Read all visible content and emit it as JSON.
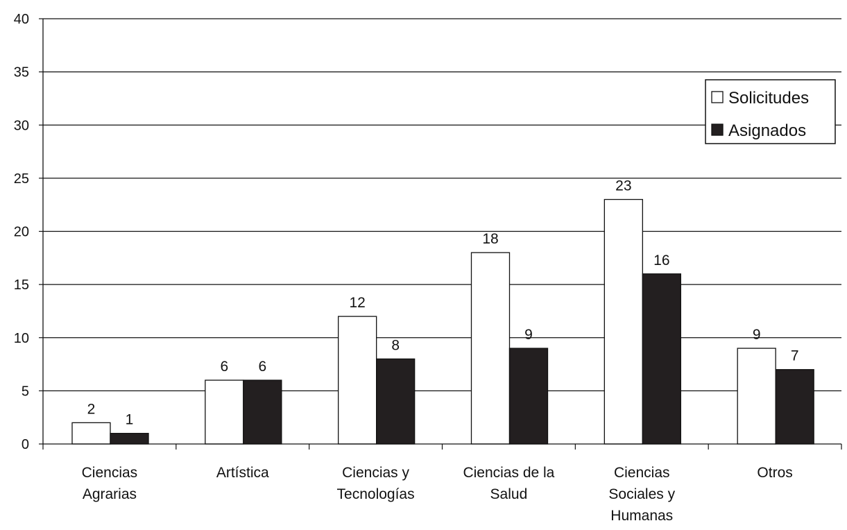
{
  "chart_data": {
    "type": "bar",
    "categories": [
      [
        "Ciencias",
        "Agrarias"
      ],
      [
        "Artística"
      ],
      [
        "Ciencias y",
        "Tecnologías"
      ],
      [
        "Ciencias de la",
        "Salud"
      ],
      [
        "Ciencias",
        "Sociales y",
        "Humanas"
      ],
      [
        "Otros"
      ]
    ],
    "series": [
      {
        "name": "Solicitudes",
        "values": [
          2,
          6,
          12,
          18,
          23,
          9
        ],
        "color": "#ffffff"
      },
      {
        "name": "Asignados",
        "values": [
          1,
          6,
          8,
          9,
          16,
          7
        ],
        "color": "#231f20"
      }
    ],
    "ylim": [
      0,
      40
    ],
    "yticks": [
      "0",
      "5",
      "10",
      "15",
      "20",
      "25",
      "30",
      "35",
      "40"
    ],
    "grid": true,
    "legend_position": "top-right",
    "data_labels": true
  }
}
